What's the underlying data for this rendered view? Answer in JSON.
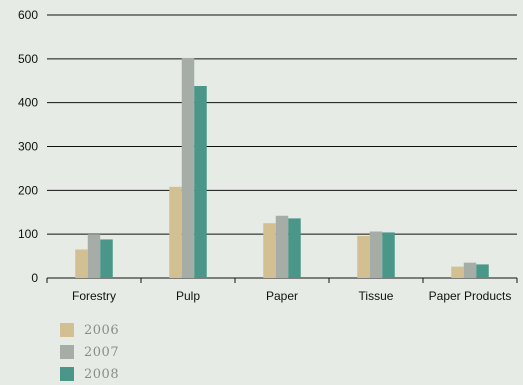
{
  "chart_data": {
    "type": "bar",
    "categories": [
      "Forestry",
      "Pulp",
      "Paper",
      "Tissue",
      "Paper Products"
    ],
    "series": [
      {
        "name": "2006",
        "color": "#d2bf92",
        "values": [
          65,
          208,
          125,
          96,
          26
        ]
      },
      {
        "name": "2007",
        "color": "#a6ada7",
        "values": [
          100,
          502,
          142,
          106,
          35
        ]
      },
      {
        "name": "2008",
        "color": "#4a978a",
        "values": [
          88,
          438,
          136,
          104,
          31
        ]
      }
    ],
    "yticks": [
      0,
      100,
      200,
      300,
      400,
      500,
      600
    ],
    "ylim": [
      0,
      600
    ],
    "grid": true,
    "legend_position": "bottom-left"
  }
}
